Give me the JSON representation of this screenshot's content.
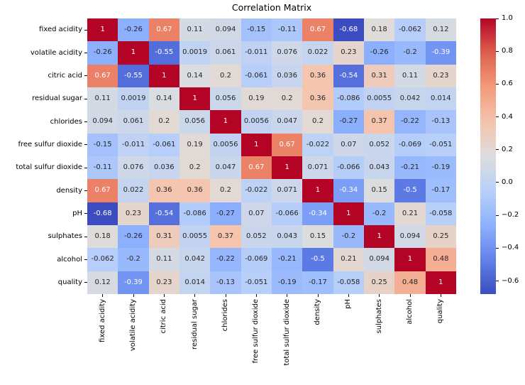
{
  "chart_data": {
    "type": "heatmap",
    "title": "Correlation Matrix",
    "colormap": "coolwarm",
    "vmin": -0.68,
    "vmax": 1.0,
    "grid": false,
    "legend_position": "right-colorbar",
    "labels": [
      "fixed acidity",
      "volatile acidity",
      "citric acid",
      "residual sugar",
      "chlorides",
      "free sulfur dioxide",
      "total sulfur dioxide",
      "density",
      "pH",
      "sulphates",
      "alcohol",
      "quality"
    ],
    "matrix": [
      [
        "1",
        "-0.26",
        "0.67",
        "0.11",
        "0.094",
        "-0.15",
        "-0.11",
        "0.67",
        "-0.68",
        "0.18",
        "-0.062",
        "0.12"
      ],
      [
        "-0.26",
        "1",
        "-0.55",
        "0.0019",
        "0.061",
        "-0.011",
        "0.076",
        "0.022",
        "0.23",
        "-0.26",
        "-0.2",
        "-0.39"
      ],
      [
        "0.67",
        "-0.55",
        "1",
        "0.14",
        "0.2",
        "-0.061",
        "0.036",
        "0.36",
        "-0.54",
        "0.31",
        "0.11",
        "0.23"
      ],
      [
        "0.11",
        "0.0019",
        "0.14",
        "1",
        "0.056",
        "0.19",
        "0.2",
        "0.36",
        "-0.086",
        "0.0055",
        "0.042",
        "0.014"
      ],
      [
        "0.094",
        "0.061",
        "0.2",
        "0.056",
        "1",
        "0.0056",
        "0.047",
        "0.2",
        "-0.27",
        "0.37",
        "-0.22",
        "-0.13"
      ],
      [
        "-0.15",
        "-0.011",
        "-0.061",
        "0.19",
        "0.0056",
        "1",
        "0.67",
        "-0.022",
        "0.07",
        "0.052",
        "-0.069",
        "-0.051"
      ],
      [
        "-0.11",
        "0.076",
        "0.036",
        "0.2",
        "0.047",
        "0.67",
        "1",
        "0.071",
        "-0.066",
        "0.043",
        "-0.21",
        "-0.19"
      ],
      [
        "0.67",
        "0.022",
        "0.36",
        "0.36",
        "0.2",
        "-0.022",
        "0.071",
        "1",
        "-0.34",
        "0.15",
        "-0.5",
        "-0.17"
      ],
      [
        "-0.68",
        "0.23",
        "-0.54",
        "-0.086",
        "-0.27",
        "0.07",
        "-0.066",
        "-0.34",
        "1",
        "-0.2",
        "0.21",
        "-0.058"
      ],
      [
        "0.18",
        "-0.26",
        "0.31",
        "0.0055",
        "0.37",
        "0.052",
        "0.043",
        "0.15",
        "-0.2",
        "1",
        "0.094",
        "0.25"
      ],
      [
        "-0.062",
        "-0.2",
        "0.11",
        "0.042",
        "-0.22",
        "-0.069",
        "-0.21",
        "-0.5",
        "0.21",
        "0.094",
        "1",
        "0.48"
      ],
      [
        "0.12",
        "-0.39",
        "0.23",
        "0.014",
        "-0.13",
        "-0.051",
        "-0.19",
        "-0.17",
        "-0.058",
        "0.25",
        "0.48",
        "1"
      ]
    ],
    "colorbar_ticks": [
      {
        "label": "1.0",
        "value": 1.0
      },
      {
        "label": "0.8",
        "value": 0.8
      },
      {
        "label": "0.6",
        "value": 0.6
      },
      {
        "label": "0.4",
        "value": 0.4
      },
      {
        "label": "0.2",
        "value": 0.2
      },
      {
        "label": "0.0",
        "value": 0.0
      },
      {
        "label": "−0.2",
        "value": -0.2
      },
      {
        "label": "−0.4",
        "value": -0.4
      },
      {
        "label": "−0.6",
        "value": -0.6
      }
    ],
    "colors": {
      "diagonal_red": "#b40426",
      "min_blue": "#3b4cc0",
      "annotation_dark": "#262626",
      "annotation_light": "#ffffff",
      "axis_text": "#000000",
      "background": "#ffffff"
    }
  }
}
